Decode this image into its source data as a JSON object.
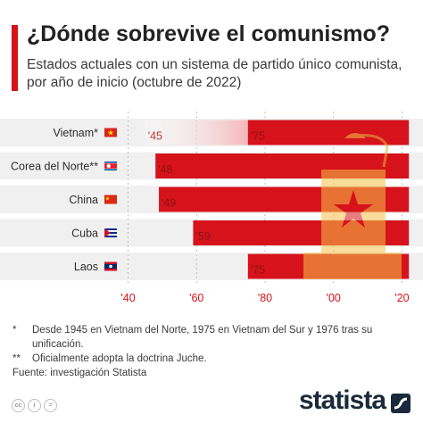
{
  "header": {
    "title": "¿Dónde sobrevive el comunismo?",
    "subtitle": "Estados actuales con un sistema de partido único comunista, por año de inicio (octubre de 2022)"
  },
  "chart_data": {
    "type": "bar",
    "orientation": "horizontal",
    "categories": [
      "Vietnam*",
      "Corea del Norte**",
      "China",
      "Cuba",
      "Laos"
    ],
    "flags": [
      "vietnam",
      "north-korea",
      "china",
      "cuba",
      "laos"
    ],
    "start": [
      1945,
      1948,
      1949,
      1959,
      1975
    ],
    "end": 2022,
    "secondary_start": [
      1975,
      null,
      null,
      null,
      null
    ],
    "bar_labels": [
      "'45",
      "'48",
      "'49",
      "'59",
      "'75"
    ],
    "secondary_labels": [
      "'75",
      null,
      null,
      null,
      null
    ],
    "xlim": [
      1937,
      2023
    ],
    "x_ticks": [
      1940,
      1960,
      1980,
      2000,
      2020
    ],
    "x_tick_labels": [
      "'40",
      "'60",
      "'80",
      "'00",
      "'20"
    ],
    "colors": {
      "bar": "#d6121b",
      "faded": "#f3b8bb",
      "band": "#f0f0f0",
      "label": "#8a1515",
      "tick": "#d6121b"
    }
  },
  "notes": [
    {
      "mark": "*",
      "text": "Desde 1945 en Vietnam del Norte, 1975 en Vietnam del Sur y 1976 tras su unificación."
    },
    {
      "mark": "**",
      "text": "Oficialmente adopta la doctrina Juche."
    }
  ],
  "source": "Fuente: investigación Statista",
  "footer": {
    "brand": "statista",
    "icons": [
      "cc-icon",
      "attribution-icon",
      "no-derivatives-icon"
    ]
  }
}
